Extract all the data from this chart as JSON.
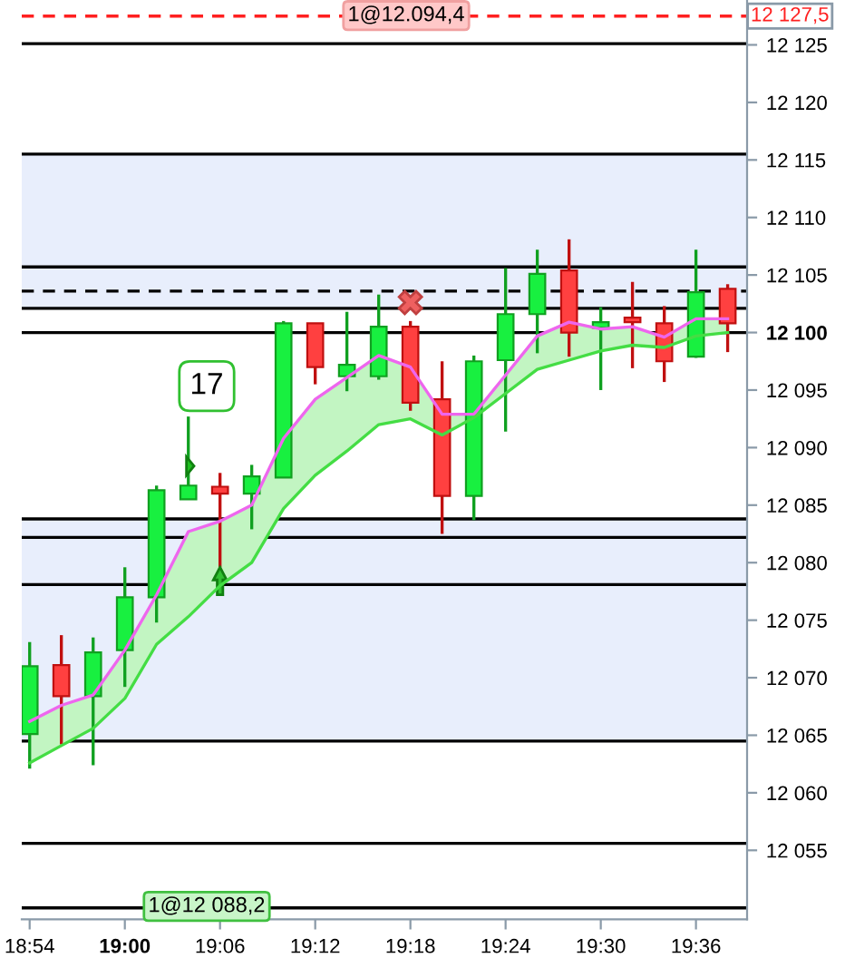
{
  "chart_data": {
    "type": "candlestick",
    "x": [
      18.9,
      18.9333,
      18.9667,
      19.0,
      19.0333,
      19.0667,
      19.1,
      19.1333,
      19.1667,
      19.2,
      19.2333,
      19.2667,
      19.3,
      19.3333,
      19.3667,
      19.4,
      19.4333,
      19.4667,
      19.5,
      19.5333,
      19.5667,
      19.6,
      19.6333
    ],
    "ohlc": [
      [
        12065.1,
        12073.1,
        12062.1,
        12071.0
      ],
      [
        12071.1,
        12073.7,
        12064.2,
        12068.4
      ],
      [
        12068.4,
        12073.5,
        12062.4,
        12072.2
      ],
      [
        12072.4,
        12079.6,
        12069.2,
        12077.0
      ],
      [
        12077.0,
        12086.7,
        12074.8,
        12086.3
      ],
      [
        12085.5,
        12092.7,
        12085.5,
        12086.7
      ],
      [
        12086.6,
        12087.8,
        12079.6,
        12086.0
      ],
      [
        12086.0,
        12088.5,
        12082.9,
        12087.5
      ],
      [
        12087.4,
        12101.0,
        12087.4,
        12100.8
      ],
      [
        12100.8,
        12100.8,
        12095.5,
        12097.0
      ],
      [
        12096.2,
        12101.8,
        12094.9,
        12097.2
      ],
      [
        12096.2,
        12103.3,
        12095.9,
        12100.5
      ],
      [
        12100.5,
        12101.0,
        12093.2,
        12093.9
      ],
      [
        12094.2,
        12097.5,
        12082.5,
        12085.8
      ],
      [
        12085.8,
        12098.0,
        12083.7,
        12097.5
      ],
      [
        12097.6,
        12105.6,
        12091.4,
        12101.6
      ],
      [
        12101.6,
        12107.2,
        12098.2,
        12105.1
      ],
      [
        12105.4,
        12108.1,
        12097.9,
        12100.0
      ],
      [
        12100.4,
        12102.2,
        12095.0,
        12100.9
      ],
      [
        12101.3,
        12104.4,
        12096.9,
        12100.9
      ],
      [
        12100.8,
        12102.3,
        12095.7,
        12097.5
      ],
      [
        12097.9,
        12107.2,
        12097.8,
        12103.5
      ],
      [
        12103.8,
        12104.2,
        12098.3,
        12100.8
      ]
    ],
    "colors": [
      "#18f040",
      "#ff4040",
      "#18f040",
      "#18f040",
      "#18f040",
      "#18f040",
      "#ff4040",
      "#18f040",
      "#18f040",
      "#ff4040",
      "#18f040",
      "#18f040",
      "#ff4040",
      "#ff4040",
      "#18f040",
      "#18f040",
      "#18f040",
      "#ff4040",
      "#18f040",
      "#ff4040",
      "#ff4040",
      "#18f040",
      "#ff4040"
    ],
    "series": [
      {
        "type": "line",
        "color": "#ee66ee",
        "values": [
          12066.2,
          12067.6,
          12068.5,
          12072.4,
          12077.2,
          12082.7,
          12083.6,
          12085.0,
          12090.8,
          12094.2,
          12096.1,
          12098.0,
          12097.0,
          12092.9,
          12092.9,
          12096.3,
          12099.7,
          12100.9,
          12100.3,
          12100.5,
          12099.6,
          12101.2,
          12101.2
        ]
      },
      {
        "type": "line",
        "color": "#44dd44",
        "values": [
          12062.6,
          12064.1,
          12065.6,
          12068.2,
          12072.9,
          12075.3,
          12078.0,
          12080.0,
          12084.7,
          12087.6,
          12089.7,
          12092.0,
          12092.5,
          12091.1,
          12092.6,
          12094.7,
          12096.8,
          12097.6,
          12098.4,
          12098.9,
          12098.7,
          12099.7,
          12100.0
        ]
      }
    ],
    "xlim": [
      18.8917,
      19.6537
    ],
    "ylim": [
      12049.0,
      12128.9
    ],
    "xticks": [
      {
        "value": 18.9,
        "label": "18:54"
      },
      {
        "value": 19.0,
        "label": "19:00"
      },
      {
        "value": 19.1,
        "label": "19:06"
      },
      {
        "value": 19.2,
        "label": "19:12"
      },
      {
        "value": 19.3,
        "label": "19:18"
      },
      {
        "value": 19.4,
        "label": "19:24"
      },
      {
        "value": 19.5,
        "label": "19:30"
      },
      {
        "value": 19.6,
        "label": "19:36"
      }
    ],
    "yticks": [
      {
        "value": 12055,
        "label": "12 055"
      },
      {
        "value": 12060,
        "label": "12 060"
      },
      {
        "value": 12065,
        "label": "12 065"
      },
      {
        "value": 12070,
        "label": "12 070"
      },
      {
        "value": 12075,
        "label": "12 075"
      },
      {
        "value": 12080,
        "label": "12 080"
      },
      {
        "value": 12085,
        "label": "12 085"
      },
      {
        "value": 12090,
        "label": "12 090"
      },
      {
        "value": 12095,
        "label": "12 095"
      },
      {
        "value": 12100,
        "label": "12 100"
      },
      {
        "value": 12105,
        "label": "12 105"
      },
      {
        "value": 12110,
        "label": "12 110"
      },
      {
        "value": 12115,
        "label": "12 115"
      },
      {
        "value": 12120,
        "label": "12 120"
      },
      {
        "value": 12125,
        "label": "12 125"
      }
    ],
    "bands": [
      {
        "axis": "y",
        "from": 12102.1,
        "to": 12115.5,
        "color": "#e8eefc"
      },
      {
        "axis": "y",
        "from": 12064.5,
        "to": 12083.8,
        "color": "#e8eefc"
      }
    ],
    "ref_lines": [
      {
        "axis": "y",
        "value": 12127.5,
        "label": "12 127,5",
        "color": "#ff2020",
        "line_style": "dashed"
      },
      {
        "axis": "y",
        "value": 12125.1,
        "color": "#000000",
        "line_style": "solid"
      },
      {
        "axis": "y",
        "value": 12115.5,
        "color": "#000000",
        "line_style": "solid"
      },
      {
        "axis": "y",
        "value": 12105.7,
        "color": "#000000",
        "line_style": "solid"
      },
      {
        "axis": "y",
        "value": 12103.6,
        "color": "#000000",
        "line_style": "dashed"
      },
      {
        "axis": "y",
        "value": 12102.1,
        "color": "#000000",
        "line_style": "solid"
      },
      {
        "axis": "y",
        "value": 12100.0,
        "color": "#000000",
        "line_style": "solid"
      },
      {
        "axis": "y",
        "value": 12083.8,
        "color": "#000000",
        "line_style": "solid"
      },
      {
        "axis": "y",
        "value": 12082.2,
        "color": "#000000",
        "line_style": "solid"
      },
      {
        "axis": "y",
        "value": 12078.1,
        "color": "#000000",
        "line_style": "solid"
      },
      {
        "axis": "y",
        "value": 12064.5,
        "color": "#000000",
        "line_style": "solid"
      },
      {
        "axis": "y",
        "value": 12055.6,
        "color": "#000000",
        "line_style": "solid"
      },
      {
        "axis": "y",
        "value": 12050.0,
        "color": "#000000",
        "line_style": "solid"
      }
    ],
    "annotations": [
      "1@12.094,4",
      "1@12 088,2",
      "17"
    ],
    "grid": false,
    "legend": false
  }
}
